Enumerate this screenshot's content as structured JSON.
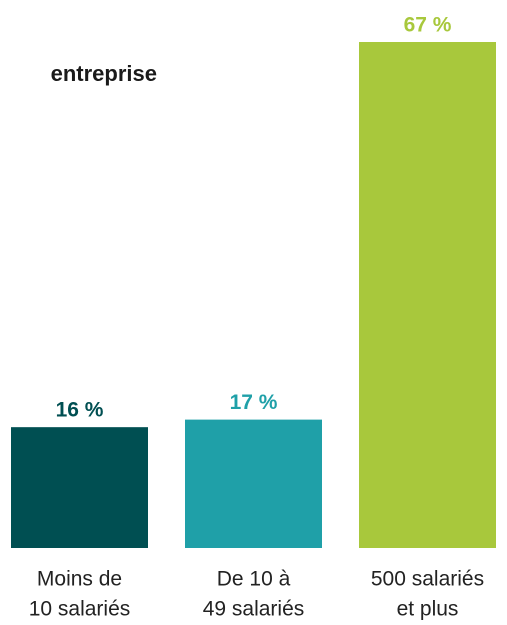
{
  "chart_data": {
    "type": "bar",
    "title": "entreprise",
    "categories": [
      [
        "Moins de",
        "10 salariés"
      ],
      [
        "De 10 à",
        "49 salariés"
      ],
      [
        "500 salariés",
        "et plus"
      ]
    ],
    "values": [
      16,
      17,
      67
    ],
    "value_labels": [
      "16 %",
      "17 %",
      "67 %"
    ],
    "colors": [
      "#004f52",
      "#1fa0a8",
      "#a8c83c"
    ]
  }
}
